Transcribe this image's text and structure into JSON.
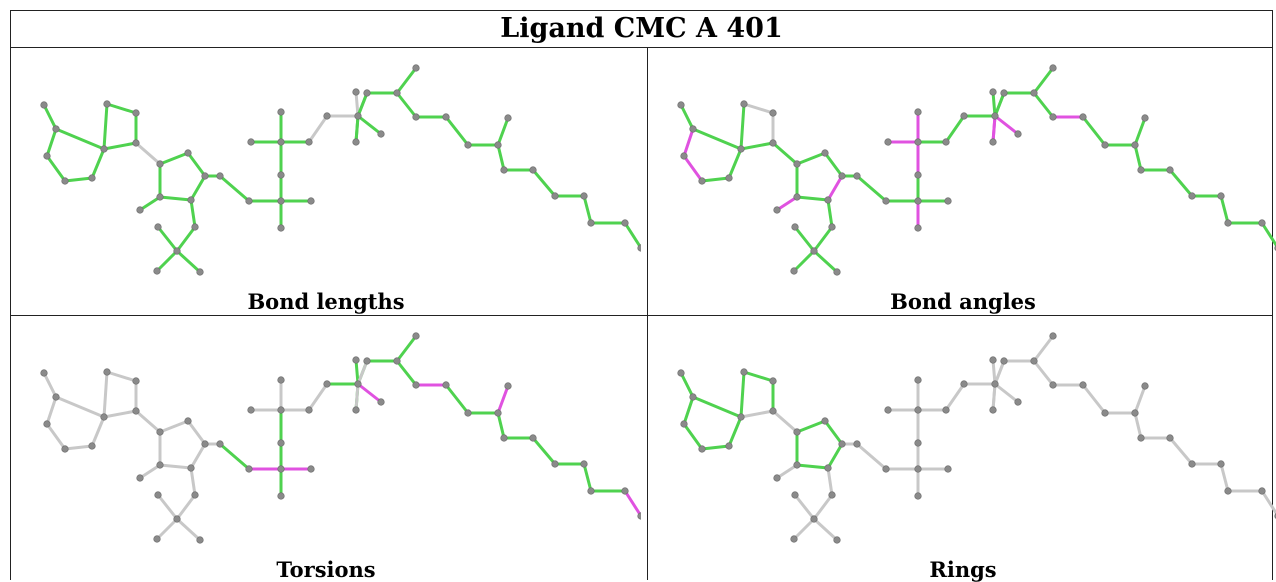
{
  "title": "Ligand CMC A 401",
  "colors": {
    "neutral": "#c8c8c8",
    "green": "#4fd24f",
    "magenta": "#e052e0",
    "atom": "#8a8a8a"
  },
  "panels": [
    {
      "label": "Bond lengths",
      "bond_colors": "GGGGGGGGGGNGGGGGGGGGGGGGGGGGGGGGNNNGGGGGGGGGGGGGGGGGGG"
    },
    {
      "label": "Bond angles",
      "bond_colors": "GMMGGGGNNGGGGMGGMGGGGGGGGGGMMMMGGGGMMGGGGMGGGGGGGGGGGM"
    },
    {
      "label": "Torsions",
      "bond_colors": "NNNNNNNNNNNNNNNNNNNNNNNGMMGGGNNNNGGMGGGGGMGGMGGGGGGMNN"
    },
    {
      "label": "Rings",
      "bond_colors": "GGGGGGGGGNNGGGGGNNNNNNNNNNNNNNNNNNNNNNNNNNNNNNNNNNNNNN"
    }
  ]
}
